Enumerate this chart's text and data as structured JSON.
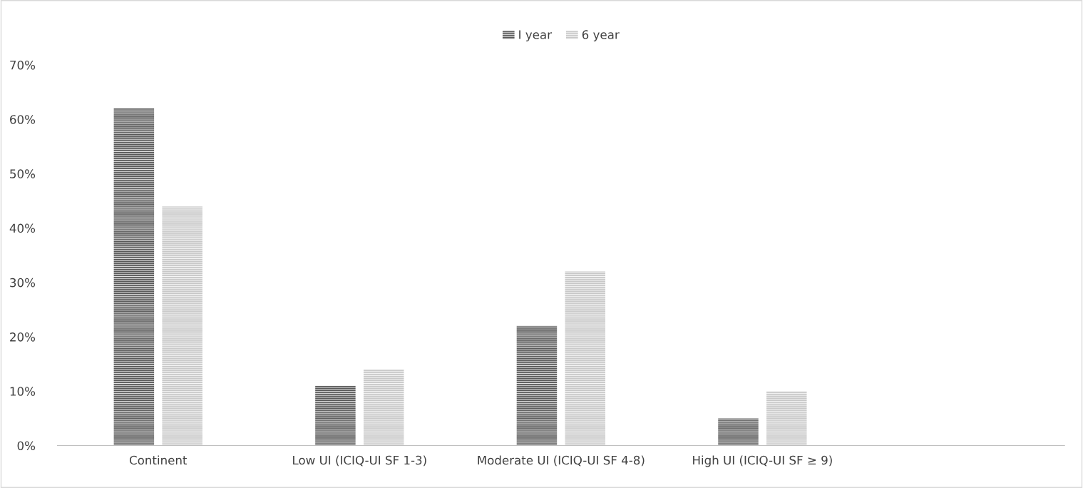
{
  "chart_data": {
    "type": "bar",
    "categories": [
      "Continent",
      "Low UI (ICIQ-UI SF 1-3)",
      "Moderate UI (ICIQ-UI SF 4-8)",
      "High UI (ICIQ-UI SF ≥ 9)",
      null
    ],
    "series": [
      {
        "name": "I year",
        "color": "#595959",
        "values": [
          62,
          11,
          22,
          5,
          null
        ]
      },
      {
        "name": "6 year",
        "color": "#c8c8c8",
        "values": [
          44,
          14,
          32,
          10,
          null
        ]
      }
    ],
    "ylim": [
      0,
      70
    ],
    "yticks": [
      {
        "value": 0,
        "label": "0%"
      },
      {
        "value": 10,
        "label": "10%"
      },
      {
        "value": 20,
        "label": "20%"
      },
      {
        "value": 30,
        "label": "30%"
      },
      {
        "value": 40,
        "label": "40%"
      },
      {
        "value": 50,
        "label": "50%"
      },
      {
        "value": 60,
        "label": "60%"
      },
      {
        "value": 70,
        "label": "70%"
      }
    ],
    "grid": false,
    "legend": "top"
  }
}
